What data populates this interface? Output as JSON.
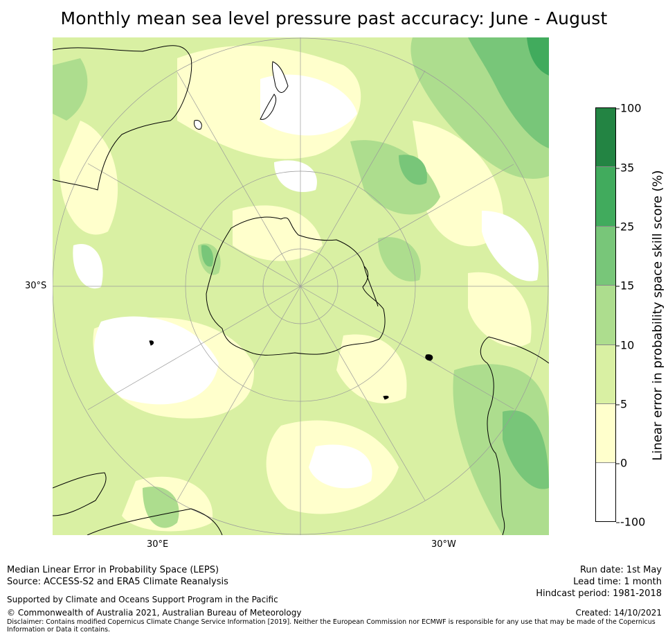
{
  "title": "Monthly mean sea level pressure past accuracy: June - August",
  "map": {
    "projection": "south polar stereographic",
    "lat_labels": [
      "30°S"
    ],
    "lon_labels": [
      "30°E",
      "30°W"
    ],
    "land_mask_color": "#ffffff",
    "coastline_color": "#000000",
    "gridline_color": "#9a9a9a"
  },
  "colorbar": {
    "title": "Linear error in probability space skill score (%)",
    "bins": [
      {
        "from": -100,
        "to": 0,
        "color": "#ffffff"
      },
      {
        "from": 0,
        "to": 5,
        "color": "#ffffcc"
      },
      {
        "from": 5,
        "to": 10,
        "color": "#d9f0a3"
      },
      {
        "from": 10,
        "to": 15,
        "color": "#addd8e"
      },
      {
        "from": 15,
        "to": 25,
        "color": "#78c679"
      },
      {
        "from": 25,
        "to": 35,
        "color": "#41ab5d"
      },
      {
        "from": 35,
        "to": 100,
        "color": "#238443"
      }
    ],
    "tick_labels": [
      "-100",
      "0",
      "5",
      "10",
      "15",
      "25",
      "35",
      "100"
    ]
  },
  "footer": {
    "left_line1": "Median Linear Error in Probability Space (LEPS)",
    "left_line2": "Source: ACCESS-S2 and ERA5 Climate Reanalysis",
    "support": "Supported by Climate and Oceans Support Program in the Pacific",
    "copyright": "© Commonwealth of Australia 2021, Australian Bureau of Meteorology",
    "disclaimer_line1": "Disclaimer: Contains modified Copernicus Climate Change Service Information [2019]. Neither the European Commission nor ECMWF is responsible for any use that may be made of the Copernicus",
    "disclaimer_line2": "Information or Data it contains.",
    "run_date": "Run date: 1st May",
    "lead_time": "Lead time: 1 month",
    "hindcast": "Hindcast period: 1981-2018",
    "created": "Created: 14/10/2021"
  }
}
